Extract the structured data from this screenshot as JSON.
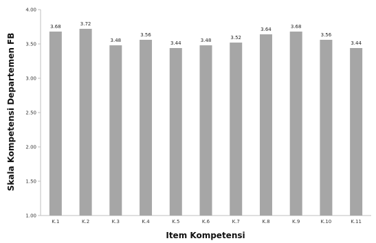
{
  "chart_data": {
    "type": "bar",
    "categories": [
      "K.1",
      "K.2",
      "K.3",
      "K.4",
      "K.5",
      "K.6",
      "K.7",
      "K.8",
      "K.9",
      "K.10",
      "K.11"
    ],
    "values": [
      3.68,
      3.72,
      3.48,
      3.56,
      3.44,
      3.48,
      3.52,
      3.64,
      3.68,
      3.56,
      3.44
    ],
    "value_labels": [
      "3.68",
      "3.72",
      "3.48",
      "3.56",
      "3.44",
      "3.48",
      "3.52",
      "3.64",
      "3.68",
      "3.56",
      "3.44"
    ],
    "title": "",
    "xlabel": "Item Kompetensi",
    "ylabel": "Skala Kompetensi Departemen FB",
    "ylim": [
      1.0,
      4.0
    ],
    "yticks": [
      1.0,
      1.5,
      2.0,
      2.5,
      3.0,
      3.5,
      4.0
    ],
    "ytick_labels": [
      "1.00",
      "1.50",
      "2.00",
      "2.50",
      "3.00",
      "3.50",
      "4.00"
    ],
    "grid": false,
    "legend": "none",
    "bar_color": "#a6a6a6",
    "axis_color": "#bfbfbf"
  }
}
